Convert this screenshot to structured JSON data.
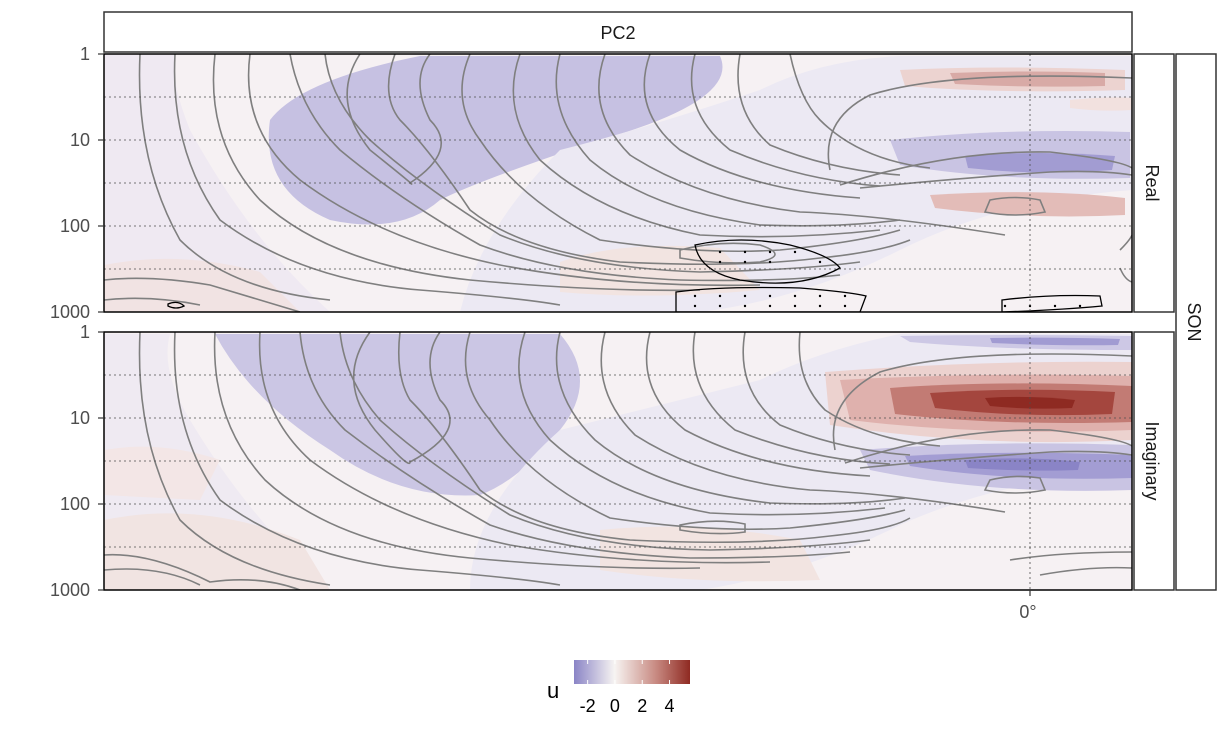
{
  "chart_data": {
    "type": "heatmap",
    "title": "",
    "facet_column": "PC2",
    "facet_rows": [
      "Real",
      "Imaginary"
    ],
    "facet_outer": "SON",
    "y_scale": "log",
    "y_reversed": true,
    "y_ticks": [
      "1",
      "10",
      "100",
      "1000"
    ],
    "y_minor_gridlines": [
      3,
      30,
      300
    ],
    "x_ticks": [
      "0°"
    ],
    "x_reference_line": "0°",
    "fill_variable": "u",
    "fill_scale": {
      "low_color": "#8a84c6",
      "mid_color": "#f7f4f2",
      "high_color": "#8f2a22",
      "ticks": [
        "-2",
        "0",
        "2",
        "4"
      ],
      "range": [
        -3,
        5.5
      ]
    },
    "panels": [
      {
        "name": "Real",
        "features": [
          {
            "kind": "negative",
            "value": -1.0,
            "region": "upper-left broad lobe"
          },
          {
            "kind": "negative",
            "value": -1.5,
            "region": "right, 10-30"
          },
          {
            "kind": "positive",
            "value": 1.5,
            "region": "right, ~3"
          },
          {
            "kind": "positive",
            "value": 1.5,
            "region": "right, ~60"
          }
        ]
      },
      {
        "name": "Imaginary",
        "features": [
          {
            "kind": "negative",
            "value": -1.0,
            "region": "upper-left broad lobe"
          },
          {
            "kind": "positive",
            "value": 5.0,
            "region": "right, ~5-10"
          },
          {
            "kind": "negative",
            "value": -2.0,
            "region": "right, ~20-40"
          },
          {
            "kind": "negative",
            "value": -1.5,
            "region": "right, ~1"
          }
        ]
      }
    ],
    "grid": true,
    "legend_position": "bottom"
  },
  "colors": {
    "panel_bg": "#f6f1f3",
    "contour": "#7f7f7f",
    "significance": "#000000",
    "strip_fill": "#ffffff",
    "strip_border": "#333333",
    "grid": "#4d4d4d"
  }
}
